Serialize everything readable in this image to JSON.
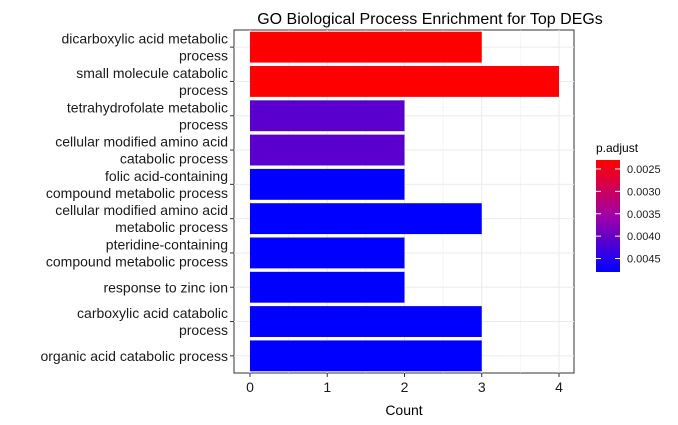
{
  "chart_data": {
    "type": "bar",
    "orientation": "horizontal",
    "title": "GO Biological Process Enrichment for Top DEGs",
    "xlabel": "Count",
    "ylabel": "",
    "xlim": [
      0,
      4
    ],
    "xticks": [
      "0",
      "1",
      "2",
      "3",
      "4"
    ],
    "grid": true,
    "categories": [
      [
        "dicarboxylic acid metabolic",
        "process"
      ],
      [
        "small molecule catabolic",
        "process"
      ],
      [
        "tetrahydrofolate metabolic",
        "process"
      ],
      [
        "cellular modified amino acid",
        "catabolic process"
      ],
      [
        "folic acid-containing",
        "compound metabolic process"
      ],
      [
        "cellular modified amino acid",
        "metabolic process"
      ],
      [
        "pteridine-containing",
        "compound metabolic process"
      ],
      [
        "response to zinc ion"
      ],
      [
        "carboxylic acid catabolic",
        "process"
      ],
      [
        "organic acid catabolic process"
      ]
    ],
    "values": [
      3,
      4,
      2,
      2,
      2,
      3,
      2,
      2,
      3,
      3
    ],
    "p_adjust": [
      0.0023,
      0.0023,
      0.0041,
      0.0041,
      0.0048,
      0.0048,
      0.0048,
      0.0048,
      0.0048,
      0.0048
    ],
    "legend": {
      "title": "p.adjust",
      "position": "right",
      "ticks": [
        "0.0025",
        "0.0030",
        "0.0035",
        "0.0040",
        "0.0045"
      ],
      "tick_values": [
        0.0025,
        0.003,
        0.0035,
        0.004,
        0.0045
      ],
      "range": [
        0.0023,
        0.0048
      ],
      "color_low": "#FF0000",
      "color_high": "#0000FF"
    }
  }
}
